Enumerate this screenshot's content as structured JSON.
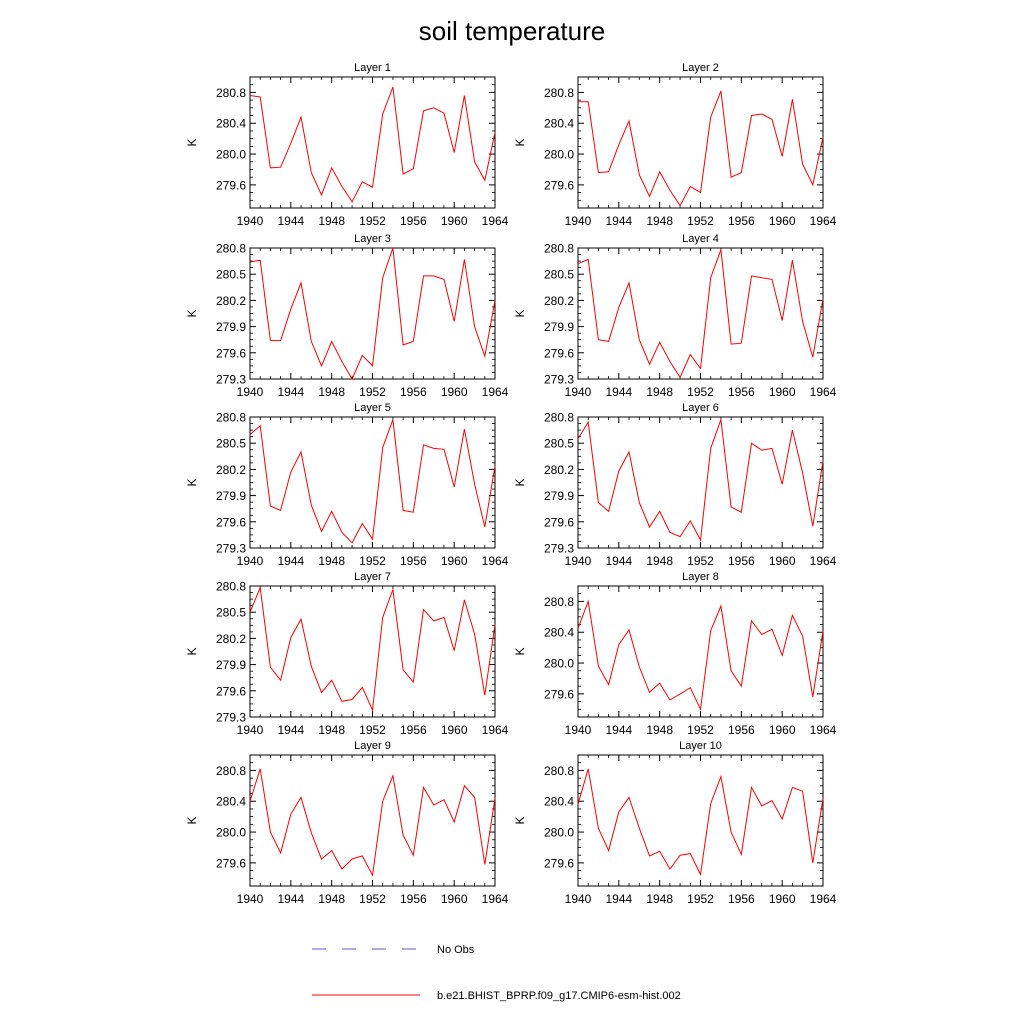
{
  "figure": {
    "title": "soil temperature",
    "legend": {
      "entries": [
        {
          "label": "No Obs",
          "color": "#5a5ad2",
          "dash": "dashed"
        },
        {
          "label": "b.e21.BHIST_BPRP.f09_g17.CMIP6-esm-hist.002",
          "color": "#ff0000",
          "dash": "solid"
        }
      ]
    }
  },
  "chart_data": [
    {
      "type": "line",
      "title": "Layer 1",
      "ylabel": "K",
      "xlim": [
        1940,
        1964
      ],
      "ylim": [
        279.3,
        281.0
      ],
      "xticks": [
        1940,
        1944,
        1948,
        1952,
        1956,
        1960,
        1964
      ],
      "yticks": [
        279.6,
        280.0,
        280.4,
        280.8
      ],
      "series": [
        {
          "name": "b.e21.BHIST_BPRP.f09_g17.CMIP6-esm-hist.002",
          "color": "#ff0000",
          "x": [
            1940,
            1941,
            1942,
            1943,
            1944,
            1945,
            1946,
            1947,
            1948,
            1949,
            1950,
            1951,
            1952,
            1953,
            1954,
            1955,
            1956,
            1957,
            1958,
            1959,
            1960,
            1961,
            1962,
            1963,
            1964
          ],
          "y": [
            280.76,
            280.74,
            279.82,
            279.83,
            280.14,
            280.48,
            279.76,
            279.47,
            279.82,
            279.58,
            279.38,
            279.64,
            279.57,
            280.52,
            280.87,
            279.74,
            279.81,
            280.56,
            280.6,
            280.53,
            280.02,
            280.76,
            279.9,
            279.66,
            280.28
          ]
        }
      ]
    },
    {
      "type": "line",
      "title": "Layer 2",
      "ylabel": "K",
      "xlim": [
        1940,
        1964
      ],
      "ylim": [
        279.3,
        281.0
      ],
      "xticks": [
        1940,
        1944,
        1948,
        1952,
        1956,
        1960,
        1964
      ],
      "yticks": [
        279.6,
        280.0,
        280.4,
        280.8
      ],
      "series": [
        {
          "name": "b.e21.BHIST_BPRP.f09_g17.CMIP6-esm-hist.002",
          "color": "#ff0000",
          "x": [
            1940,
            1941,
            1942,
            1943,
            1944,
            1945,
            1946,
            1947,
            1948,
            1949,
            1950,
            1951,
            1952,
            1953,
            1954,
            1955,
            1956,
            1957,
            1958,
            1959,
            1960,
            1961,
            1962,
            1963,
            1964
          ],
          "y": [
            280.68,
            280.68,
            279.76,
            279.77,
            280.12,
            280.43,
            279.73,
            279.45,
            279.77,
            279.53,
            279.33,
            279.58,
            279.5,
            280.48,
            280.82,
            279.7,
            279.76,
            280.5,
            280.52,
            280.45,
            279.97,
            280.71,
            279.87,
            279.6,
            280.22
          ]
        }
      ]
    },
    {
      "type": "line",
      "title": "Layer 3",
      "ylabel": "K",
      "xlim": [
        1940,
        1964
      ],
      "ylim": [
        279.3,
        280.8
      ],
      "xticks": [
        1940,
        1944,
        1948,
        1952,
        1956,
        1960,
        1964
      ],
      "yticks": [
        279.3,
        279.6,
        279.9,
        280.2,
        280.5,
        280.8
      ],
      "series": [
        {
          "name": "b.e21.BHIST_BPRP.f09_g17.CMIP6-esm-hist.002",
          "color": "#ff0000",
          "x": [
            1940,
            1941,
            1942,
            1943,
            1944,
            1945,
            1946,
            1947,
            1948,
            1949,
            1950,
            1951,
            1952,
            1953,
            1954,
            1955,
            1956,
            1957,
            1958,
            1959,
            1960,
            1961,
            1962,
            1963,
            1964
          ],
          "y": [
            280.64,
            280.66,
            279.74,
            279.74,
            280.1,
            280.4,
            279.73,
            279.45,
            279.73,
            279.5,
            279.3,
            279.57,
            279.45,
            280.46,
            280.8,
            279.69,
            279.73,
            280.48,
            280.48,
            280.44,
            279.96,
            280.67,
            279.9,
            279.56,
            280.2
          ]
        }
      ]
    },
    {
      "type": "line",
      "title": "Layer 4",
      "ylabel": "K",
      "xlim": [
        1940,
        1964
      ],
      "ylim": [
        279.3,
        280.8
      ],
      "xticks": [
        1940,
        1944,
        1948,
        1952,
        1956,
        1960,
        1964
      ],
      "yticks": [
        279.3,
        279.6,
        279.9,
        280.2,
        280.5,
        280.8
      ],
      "series": [
        {
          "name": "b.e21.BHIST_BPRP.f09_g17.CMIP6-esm-hist.002",
          "color": "#ff0000",
          "x": [
            1940,
            1941,
            1942,
            1943,
            1944,
            1945,
            1946,
            1947,
            1948,
            1949,
            1950,
            1951,
            1952,
            1953,
            1954,
            1955,
            1956,
            1957,
            1958,
            1959,
            1960,
            1961,
            1962,
            1963,
            1964
          ],
          "y": [
            280.62,
            280.67,
            279.75,
            279.73,
            280.12,
            280.4,
            279.75,
            279.47,
            279.72,
            279.5,
            279.32,
            279.58,
            279.42,
            280.46,
            280.78,
            279.7,
            279.71,
            280.48,
            280.46,
            280.44,
            279.97,
            280.66,
            279.96,
            279.55,
            280.22
          ]
        }
      ]
    },
    {
      "type": "line",
      "title": "Layer 5",
      "ylabel": "K",
      "xlim": [
        1940,
        1964
      ],
      "ylim": [
        279.3,
        280.8
      ],
      "xticks": [
        1940,
        1944,
        1948,
        1952,
        1956,
        1960,
        1964
      ],
      "yticks": [
        279.3,
        279.6,
        279.9,
        280.2,
        280.5,
        280.8
      ],
      "series": [
        {
          "name": "b.e21.BHIST_BPRP.f09_g17.CMIP6-esm-hist.002",
          "color": "#ff0000",
          "x": [
            1940,
            1941,
            1942,
            1943,
            1944,
            1945,
            1946,
            1947,
            1948,
            1949,
            1950,
            1951,
            1952,
            1953,
            1954,
            1955,
            1956,
            1957,
            1958,
            1959,
            1960,
            1961,
            1962,
            1963,
            1964
          ],
          "y": [
            280.6,
            280.7,
            279.78,
            279.73,
            280.17,
            280.4,
            279.79,
            279.49,
            279.72,
            279.48,
            279.36,
            279.58,
            279.4,
            280.45,
            280.77,
            279.73,
            279.71,
            280.48,
            280.44,
            280.43,
            280.0,
            280.66,
            280.03,
            279.54,
            280.24
          ]
        }
      ]
    },
    {
      "type": "line",
      "title": "Layer 6",
      "ylabel": "K",
      "xlim": [
        1940,
        1964
      ],
      "ylim": [
        279.3,
        280.8
      ],
      "xticks": [
        1940,
        1944,
        1948,
        1952,
        1956,
        1960,
        1964
      ],
      "yticks": [
        279.3,
        279.6,
        279.9,
        280.2,
        280.5,
        280.8
      ],
      "series": [
        {
          "name": "b.e21.BHIST_BPRP.f09_g17.CMIP6-esm-hist.002",
          "color": "#ff0000",
          "x": [
            1940,
            1941,
            1942,
            1943,
            1944,
            1945,
            1946,
            1947,
            1948,
            1949,
            1950,
            1951,
            1952,
            1953,
            1954,
            1955,
            1956,
            1957,
            1958,
            1959,
            1960,
            1961,
            1962,
            1963,
            1964
          ],
          "y": [
            280.55,
            280.74,
            279.82,
            279.72,
            280.18,
            280.4,
            279.82,
            279.54,
            279.72,
            279.48,
            279.43,
            279.61,
            279.39,
            280.44,
            280.77,
            279.77,
            279.71,
            280.5,
            280.42,
            280.44,
            280.03,
            280.65,
            280.16,
            279.55,
            280.3
          ]
        }
      ]
    },
    {
      "type": "line",
      "title": "Layer 7",
      "ylabel": "K",
      "xlim": [
        1940,
        1964
      ],
      "ylim": [
        279.3,
        280.8
      ],
      "xticks": [
        1940,
        1944,
        1948,
        1952,
        1956,
        1960,
        1964
      ],
      "yticks": [
        279.3,
        279.6,
        279.9,
        280.2,
        280.5,
        280.8
      ],
      "series": [
        {
          "name": "b.e21.BHIST_BPRP.f09_g17.CMIP6-esm-hist.002",
          "color": "#ff0000",
          "x": [
            1940,
            1941,
            1942,
            1943,
            1944,
            1945,
            1946,
            1947,
            1948,
            1949,
            1950,
            1951,
            1952,
            1953,
            1954,
            1955,
            1956,
            1957,
            1958,
            1959,
            1960,
            1961,
            1962,
            1963,
            1964
          ],
          "y": [
            280.5,
            280.78,
            279.87,
            279.72,
            280.21,
            280.42,
            279.88,
            279.58,
            279.72,
            279.48,
            279.5,
            279.64,
            279.38,
            280.44,
            280.76,
            279.84,
            279.7,
            280.53,
            280.4,
            280.44,
            280.06,
            280.64,
            280.25,
            279.55,
            280.36
          ]
        }
      ]
    },
    {
      "type": "line",
      "title": "Layer 8",
      "ylabel": "K",
      "xlim": [
        1940,
        1964
      ],
      "ylim": [
        279.3,
        281.0
      ],
      "xticks": [
        1940,
        1944,
        1948,
        1952,
        1956,
        1960,
        1964
      ],
      "yticks": [
        279.6,
        280.0,
        280.4,
        280.8
      ],
      "series": [
        {
          "name": "b.e21.BHIST_BPRP.f09_g17.CMIP6-esm-hist.002",
          "color": "#ff0000",
          "x": [
            1940,
            1941,
            1942,
            1943,
            1944,
            1945,
            1946,
            1947,
            1948,
            1949,
            1950,
            1951,
            1952,
            1953,
            1954,
            1955,
            1956,
            1957,
            1958,
            1959,
            1960,
            1961,
            1962,
            1963,
            1964
          ],
          "y": [
            280.45,
            280.8,
            279.96,
            279.72,
            280.24,
            280.43,
            279.95,
            279.62,
            279.74,
            279.52,
            279.6,
            279.68,
            279.4,
            280.42,
            280.74,
            279.9,
            279.7,
            280.55,
            280.37,
            280.44,
            280.1,
            280.62,
            280.35,
            279.56,
            280.42
          ]
        }
      ]
    },
    {
      "type": "line",
      "title": "Layer 9",
      "ylabel": "K",
      "xlim": [
        1940,
        1964
      ],
      "ylim": [
        279.3,
        281.0
      ],
      "xticks": [
        1940,
        1944,
        1948,
        1952,
        1956,
        1960,
        1964
      ],
      "yticks": [
        279.6,
        280.0,
        280.4,
        280.8
      ],
      "series": [
        {
          "name": "b.e21.BHIST_BPRP.f09_g17.CMIP6-esm-hist.002",
          "color": "#ff0000",
          "x": [
            1940,
            1941,
            1942,
            1943,
            1944,
            1945,
            1946,
            1947,
            1948,
            1949,
            1950,
            1951,
            1952,
            1953,
            1954,
            1955,
            1956,
            1957,
            1958,
            1959,
            1960,
            1961,
            1962,
            1963,
            1964
          ],
          "y": [
            280.4,
            280.82,
            280.0,
            279.73,
            280.23,
            280.45,
            279.99,
            279.65,
            279.76,
            279.52,
            279.65,
            279.69,
            279.44,
            280.4,
            280.73,
            279.96,
            279.7,
            280.58,
            280.35,
            280.42,
            280.13,
            280.6,
            280.45,
            279.58,
            280.44
          ]
        }
      ]
    },
    {
      "type": "line",
      "title": "Layer 10",
      "ylabel": "K",
      "xlim": [
        1940,
        1964
      ],
      "ylim": [
        279.3,
        281.0
      ],
      "xticks": [
        1940,
        1944,
        1948,
        1952,
        1956,
        1960,
        1964
      ],
      "yticks": [
        279.6,
        280.0,
        280.4,
        280.8
      ],
      "series": [
        {
          "name": "b.e21.BHIST_BPRP.f09_g17.CMIP6-esm-hist.002",
          "color": "#ff0000",
          "x": [
            1940,
            1941,
            1942,
            1943,
            1944,
            1945,
            1946,
            1947,
            1948,
            1949,
            1950,
            1951,
            1952,
            1953,
            1954,
            1955,
            1956,
            1957,
            1958,
            1959,
            1960,
            1961,
            1962,
            1963,
            1964
          ],
          "y": [
            280.36,
            280.82,
            280.05,
            279.76,
            280.26,
            280.45,
            280.05,
            279.69,
            279.75,
            279.52,
            279.7,
            279.72,
            279.45,
            280.37,
            280.72,
            280.0,
            279.71,
            280.58,
            280.34,
            280.41,
            280.17,
            280.58,
            280.53,
            279.6,
            280.44
          ]
        }
      ]
    }
  ]
}
